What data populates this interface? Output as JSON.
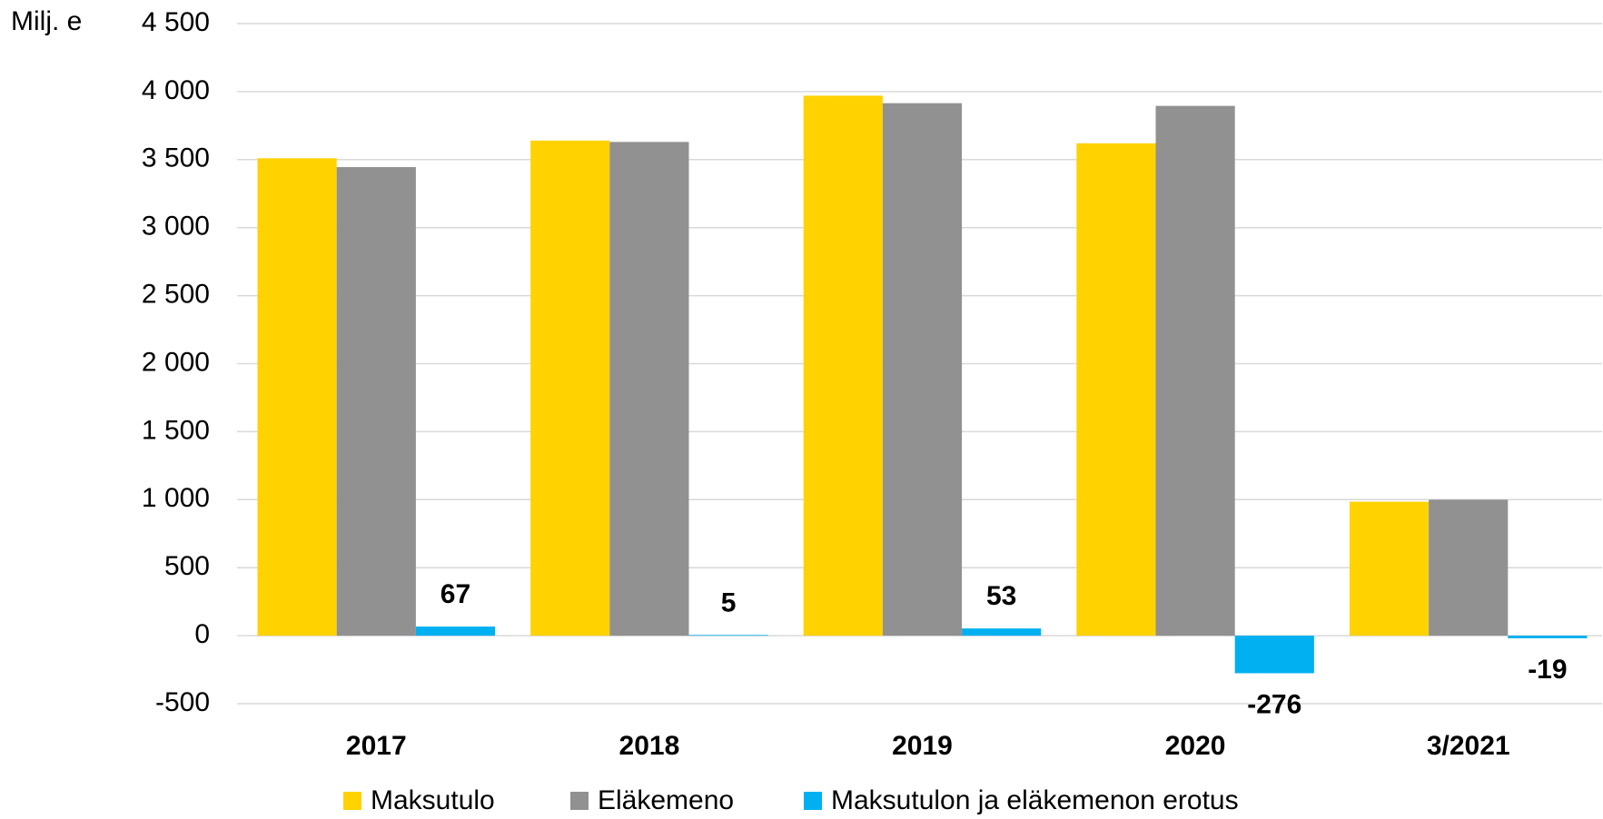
{
  "chart_data": {
    "type": "bar",
    "y_label": "Milj. e",
    "categories": [
      "2017",
      "2018",
      "2019",
      "2020",
      "3/2021"
    ],
    "series": [
      {
        "name": "Maksutulo",
        "color": "#FFD200",
        "values": [
          3510,
          3640,
          3970,
          3620,
          985
        ]
      },
      {
        "name": "Eläkemeno",
        "color": "#919191",
        "values": [
          3445,
          3630,
          3915,
          3895,
          1000
        ]
      },
      {
        "name": "Maksutulon ja eläkemenon erotus",
        "color": "#00B0F0",
        "values": [
          67,
          5,
          53,
          -276,
          -19
        ]
      }
    ],
    "ylim": [
      -500,
      4500
    ],
    "yticks": [
      -500,
      0,
      500,
      {
        "value": 1000,
        "label": "1 000"
      },
      {
        "value": 1500,
        "label": "1 500"
      },
      {
        "value": 2000,
        "label": "2 000"
      },
      {
        "value": 2500,
        "label": "2 500"
      },
      {
        "value": 3000,
        "label": "3 000"
      },
      {
        "value": 3500,
        "label": "3 500"
      },
      {
        "value": 4000,
        "label": "4 000"
      },
      {
        "value": 4500,
        "label": "4 500"
      }
    ],
    "grid": true,
    "legend": "bottom"
  }
}
